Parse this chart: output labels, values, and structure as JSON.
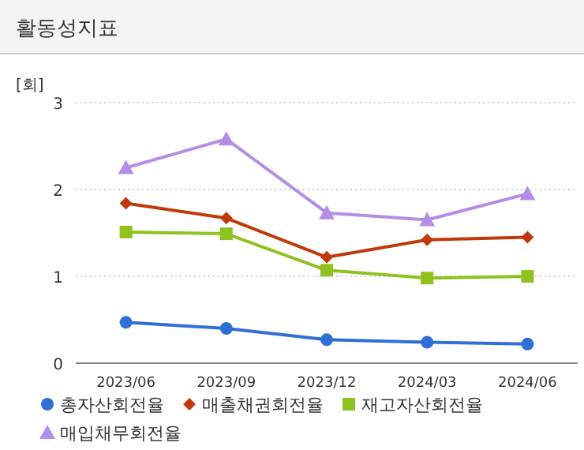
{
  "chart_data": {
    "type": "line",
    "title": "활동성지표",
    "ylabel": "[회]",
    "categories": [
      "2023/06",
      "2023/09",
      "2023/12",
      "2024/03",
      "2024/06"
    ],
    "ylim": [
      0,
      3
    ],
    "yticks": [
      0,
      1,
      2,
      3
    ],
    "grid": "y",
    "legend": "bottom",
    "series": [
      {
        "name": "총자산회전율",
        "color": "#2f6fd6",
        "marker": "circle",
        "values": [
          0.47,
          0.4,
          0.27,
          0.24,
          0.22
        ]
      },
      {
        "name": "매출채권회전율",
        "color": "#c0390b",
        "marker": "diamond",
        "values": [
          1.84,
          1.67,
          1.22,
          1.42,
          1.45
        ]
      },
      {
        "name": "재고자산회전율",
        "color": "#8dc21f",
        "marker": "square",
        "values": [
          1.51,
          1.49,
          1.07,
          0.98,
          1.0
        ]
      },
      {
        "name": "매입채무회전율",
        "color": "#b38de6",
        "marker": "triangle",
        "values": [
          2.25,
          2.58,
          1.73,
          1.65,
          1.95
        ]
      }
    ]
  }
}
